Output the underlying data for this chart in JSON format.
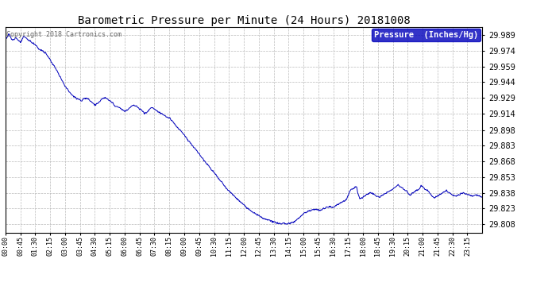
{
  "title": "Barometric Pressure per Minute (24 Hours) 20181008",
  "copyright": "Copyright 2018 Cartronics.com",
  "legend_label": "Pressure  (Inches/Hg)",
  "line_color": "#0000bb",
  "background_color": "#ffffff",
  "grid_color": "#bbbbbb",
  "ylim": [
    29.8,
    29.997
  ],
  "yticks": [
    29.808,
    29.823,
    29.838,
    29.853,
    29.868,
    29.883,
    29.898,
    29.914,
    29.929,
    29.944,
    29.959,
    29.974,
    29.989
  ],
  "xtick_labels": [
    "00:00",
    "00:45",
    "01:30",
    "02:15",
    "03:00",
    "03:45",
    "04:30",
    "05:15",
    "06:00",
    "06:45",
    "07:30",
    "08:15",
    "09:00",
    "09:45",
    "10:30",
    "11:15",
    "12:00",
    "12:45",
    "13:30",
    "14:15",
    "15:00",
    "15:45",
    "16:30",
    "17:15",
    "18:00",
    "18:45",
    "19:30",
    "20:15",
    "21:00",
    "21:45",
    "22:30",
    "23:15"
  ],
  "pressure_keypoints": [
    [
      0,
      29.985
    ],
    [
      10,
      29.99
    ],
    [
      20,
      29.984
    ],
    [
      30,
      29.987
    ],
    [
      45,
      29.982
    ],
    [
      55,
      29.988
    ],
    [
      70,
      29.984
    ],
    [
      90,
      29.98
    ],
    [
      100,
      29.976
    ],
    [
      110,
      29.974
    ],
    [
      120,
      29.972
    ],
    [
      130,
      29.968
    ],
    [
      140,
      29.962
    ],
    [
      150,
      29.958
    ],
    [
      160,
      29.952
    ],
    [
      170,
      29.946
    ],
    [
      180,
      29.94
    ],
    [
      190,
      29.936
    ],
    [
      200,
      29.932
    ],
    [
      210,
      29.929
    ],
    [
      220,
      29.928
    ],
    [
      230,
      29.926
    ],
    [
      240,
      29.929
    ],
    [
      250,
      29.928
    ],
    [
      260,
      29.925
    ],
    [
      270,
      29.922
    ],
    [
      280,
      29.924
    ],
    [
      290,
      29.928
    ],
    [
      300,
      29.929
    ],
    [
      310,
      29.927
    ],
    [
      320,
      29.925
    ],
    [
      330,
      29.921
    ],
    [
      340,
      29.92
    ],
    [
      350,
      29.918
    ],
    [
      360,
      29.916
    ],
    [
      370,
      29.918
    ],
    [
      375,
      29.92
    ],
    [
      385,
      29.922
    ],
    [
      395,
      29.921
    ],
    [
      405,
      29.918
    ],
    [
      415,
      29.916
    ],
    [
      420,
      29.914
    ],
    [
      430,
      29.916
    ],
    [
      440,
      29.92
    ],
    [
      450,
      29.918
    ],
    [
      460,
      29.916
    ],
    [
      470,
      29.914
    ],
    [
      480,
      29.912
    ],
    [
      490,
      29.91
    ],
    [
      500,
      29.908
    ],
    [
      510,
      29.904
    ],
    [
      520,
      29.9
    ],
    [
      530,
      29.897
    ],
    [
      540,
      29.893
    ],
    [
      550,
      29.889
    ],
    [
      560,
      29.885
    ],
    [
      570,
      29.881
    ],
    [
      580,
      29.877
    ],
    [
      590,
      29.873
    ],
    [
      600,
      29.869
    ],
    [
      610,
      29.865
    ],
    [
      620,
      29.861
    ],
    [
      630,
      29.857
    ],
    [
      640,
      29.853
    ],
    [
      650,
      29.849
    ],
    [
      660,
      29.845
    ],
    [
      670,
      29.841
    ],
    [
      680,
      29.838
    ],
    [
      690,
      29.835
    ],
    [
      700,
      29.832
    ],
    [
      710,
      29.829
    ],
    [
      720,
      29.826
    ],
    [
      730,
      29.823
    ],
    [
      740,
      29.821
    ],
    [
      750,
      29.819
    ],
    [
      760,
      29.817
    ],
    [
      770,
      29.815
    ],
    [
      780,
      29.813
    ],
    [
      790,
      29.812
    ],
    [
      800,
      29.811
    ],
    [
      810,
      29.81
    ],
    [
      820,
      29.809
    ],
    [
      830,
      29.808
    ],
    [
      840,
      29.809
    ],
    [
      850,
      29.808
    ],
    [
      860,
      29.809
    ],
    [
      870,
      29.81
    ],
    [
      880,
      29.812
    ],
    [
      890,
      29.815
    ],
    [
      900,
      29.818
    ],
    [
      910,
      29.82
    ],
    [
      920,
      29.821
    ],
    [
      930,
      29.822
    ],
    [
      940,
      29.822
    ],
    [
      950,
      29.821
    ],
    [
      960,
      29.823
    ],
    [
      970,
      29.824
    ],
    [
      980,
      29.825
    ],
    [
      990,
      29.824
    ],
    [
      1000,
      29.826
    ],
    [
      1010,
      29.828
    ],
    [
      1020,
      29.83
    ],
    [
      1030,
      29.832
    ],
    [
      1035,
      29.836
    ],
    [
      1040,
      29.84
    ],
    [
      1050,
      29.842
    ],
    [
      1060,
      29.844
    ],
    [
      1065,
      29.836
    ],
    [
      1070,
      29.832
    ],
    [
      1080,
      29.834
    ],
    [
      1090,
      29.836
    ],
    [
      1100,
      29.838
    ],
    [
      1110,
      29.837
    ],
    [
      1120,
      29.835
    ],
    [
      1130,
      29.834
    ],
    [
      1140,
      29.836
    ],
    [
      1150,
      29.838
    ],
    [
      1160,
      29.84
    ],
    [
      1170,
      29.842
    ],
    [
      1180,
      29.844
    ],
    [
      1185,
      29.846
    ],
    [
      1190,
      29.844
    ],
    [
      1200,
      29.842
    ],
    [
      1210,
      29.84
    ],
    [
      1215,
      29.838
    ],
    [
      1220,
      29.836
    ],
    [
      1230,
      29.838
    ],
    [
      1240,
      29.84
    ],
    [
      1250,
      29.842
    ],
    [
      1255,
      29.845
    ],
    [
      1260,
      29.844
    ],
    [
      1265,
      29.842
    ],
    [
      1275,
      29.84
    ],
    [
      1280,
      29.838
    ],
    [
      1285,
      29.836
    ],
    [
      1290,
      29.834
    ],
    [
      1295,
      29.833
    ],
    [
      1300,
      29.834
    ],
    [
      1310,
      29.836
    ],
    [
      1320,
      29.838
    ],
    [
      1330,
      29.84
    ],
    [
      1340,
      29.838
    ],
    [
      1350,
      29.836
    ],
    [
      1360,
      29.835
    ],
    [
      1370,
      29.836
    ],
    [
      1380,
      29.838
    ],
    [
      1390,
      29.837
    ],
    [
      1400,
      29.836
    ],
    [
      1410,
      29.835
    ],
    [
      1420,
      29.836
    ],
    [
      1430,
      29.835
    ],
    [
      1440,
      29.834
    ]
  ]
}
